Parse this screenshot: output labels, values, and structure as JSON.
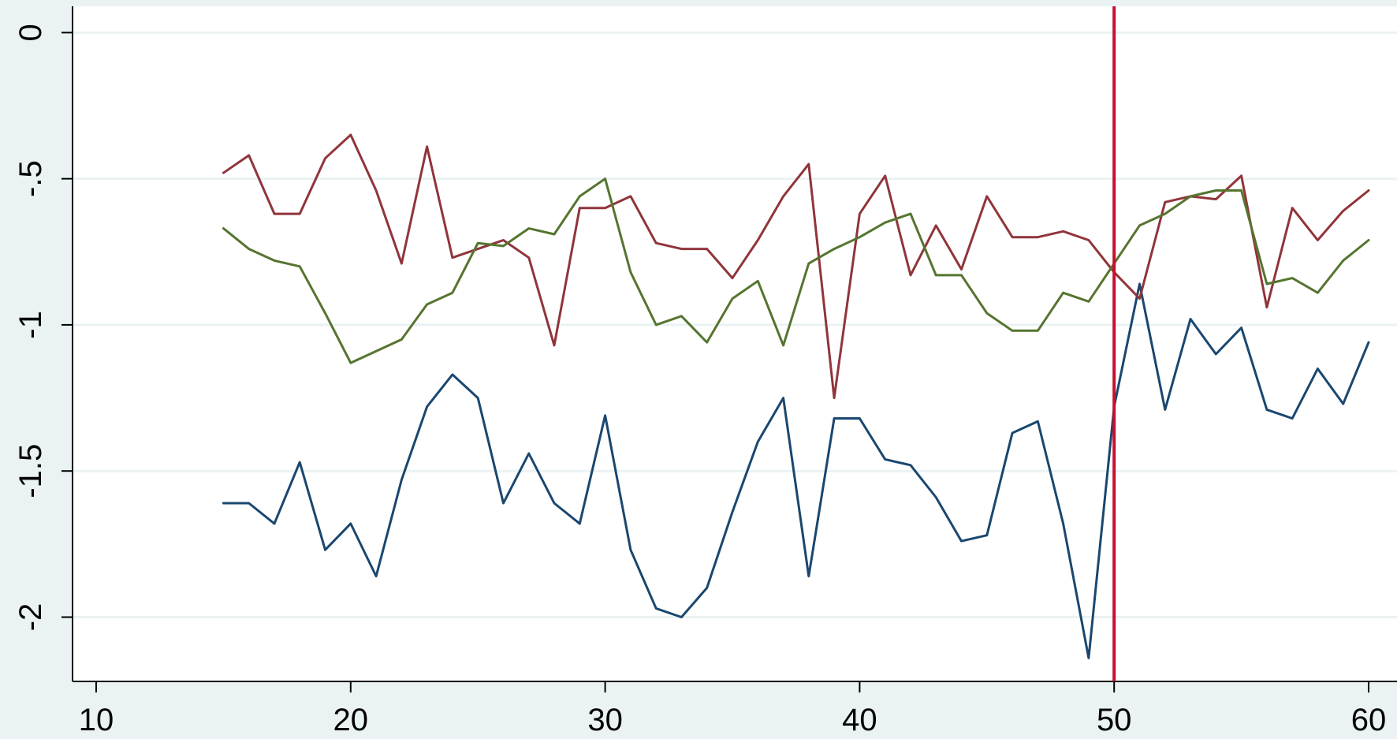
{
  "chart_data": {
    "type": "line",
    "title": "",
    "xlabel": "",
    "ylabel": "",
    "xlim": [
      10,
      60
    ],
    "ylim": [
      -2.22,
      0.09
    ],
    "x_ticks": [
      10,
      20,
      30,
      40,
      50,
      60
    ],
    "y_ticks": [
      0,
      -0.5,
      -1,
      -1.5,
      -2
    ],
    "x_tick_labels": [
      "10",
      "20",
      "30",
      "40",
      "50",
      "60"
    ],
    "y_tick_labels": [
      "0",
      "-.5",
      "-1",
      "-1.5",
      "-2"
    ],
    "grid": true,
    "legend": "none",
    "vertical_reference_line": {
      "x": 50,
      "color": "#c8102e"
    },
    "x": [
      15,
      16,
      17,
      18,
      19,
      20,
      21,
      22,
      23,
      24,
      25,
      26,
      27,
      28,
      29,
      30,
      31,
      32,
      33,
      34,
      35,
      36,
      37,
      38,
      39,
      40,
      41,
      42,
      43,
      44,
      45,
      46,
      47,
      48,
      49,
      50,
      51,
      52,
      53,
      54,
      55,
      56,
      57,
      58,
      59,
      60
    ],
    "series": [
      {
        "color": "#1a476f",
        "values": [
          -1.61,
          -1.61,
          -1.68,
          -1.47,
          -1.77,
          -1.68,
          -1.86,
          -1.53,
          -1.28,
          -1.17,
          -1.25,
          -1.61,
          -1.44,
          -1.61,
          -1.68,
          -1.31,
          -1.77,
          -1.97,
          -2.0,
          -1.9,
          -1.64,
          -1.4,
          -1.25,
          -1.86,
          -1.32,
          -1.32,
          -1.46,
          -1.48,
          -1.59,
          -1.74,
          -1.72,
          -1.37,
          -1.33,
          -1.68,
          -2.14,
          -1.28,
          -0.86,
          -1.29,
          -0.98,
          -1.1,
          -1.01,
          -1.29,
          -1.32,
          -1.15,
          -1.27,
          -1.06
        ]
      },
      {
        "color": "#90353b",
        "values": [
          -0.48,
          -0.42,
          -0.62,
          -0.62,
          -0.43,
          -0.35,
          -0.54,
          -0.79,
          -0.39,
          -0.77,
          -0.74,
          -0.71,
          -0.77,
          -1.07,
          -0.6,
          -0.6,
          -0.56,
          -0.72,
          -0.74,
          -0.74,
          -0.84,
          -0.71,
          -0.56,
          -0.45,
          -1.25,
          -0.62,
          -0.49,
          -0.83,
          -0.66,
          -0.81,
          -0.56,
          -0.7,
          -0.7,
          -0.68,
          -0.71,
          -0.82,
          -0.91,
          -0.58,
          -0.56,
          -0.57,
          -0.49,
          -0.94,
          -0.6,
          -0.71,
          -0.61,
          -0.54
        ]
      },
      {
        "color": "#55752f",
        "values": [
          -0.67,
          -0.74,
          -0.78,
          -0.8,
          -0.96,
          -1.13,
          -1.09,
          -1.05,
          -0.93,
          -0.89,
          -0.72,
          -0.73,
          -0.67,
          -0.69,
          -0.56,
          -0.5,
          -0.82,
          -1.0,
          -0.97,
          -1.06,
          -0.91,
          -0.85,
          -1.07,
          -0.79,
          -0.74,
          -0.7,
          -0.65,
          -0.62,
          -0.83,
          -0.83,
          -0.96,
          -1.02,
          -1.02,
          -0.89,
          -0.92,
          -0.79,
          -0.66,
          -0.62,
          -0.56,
          -0.54,
          -0.54,
          -0.86,
          -0.84,
          -0.89,
          -0.78,
          -0.71
        ]
      }
    ]
  }
}
